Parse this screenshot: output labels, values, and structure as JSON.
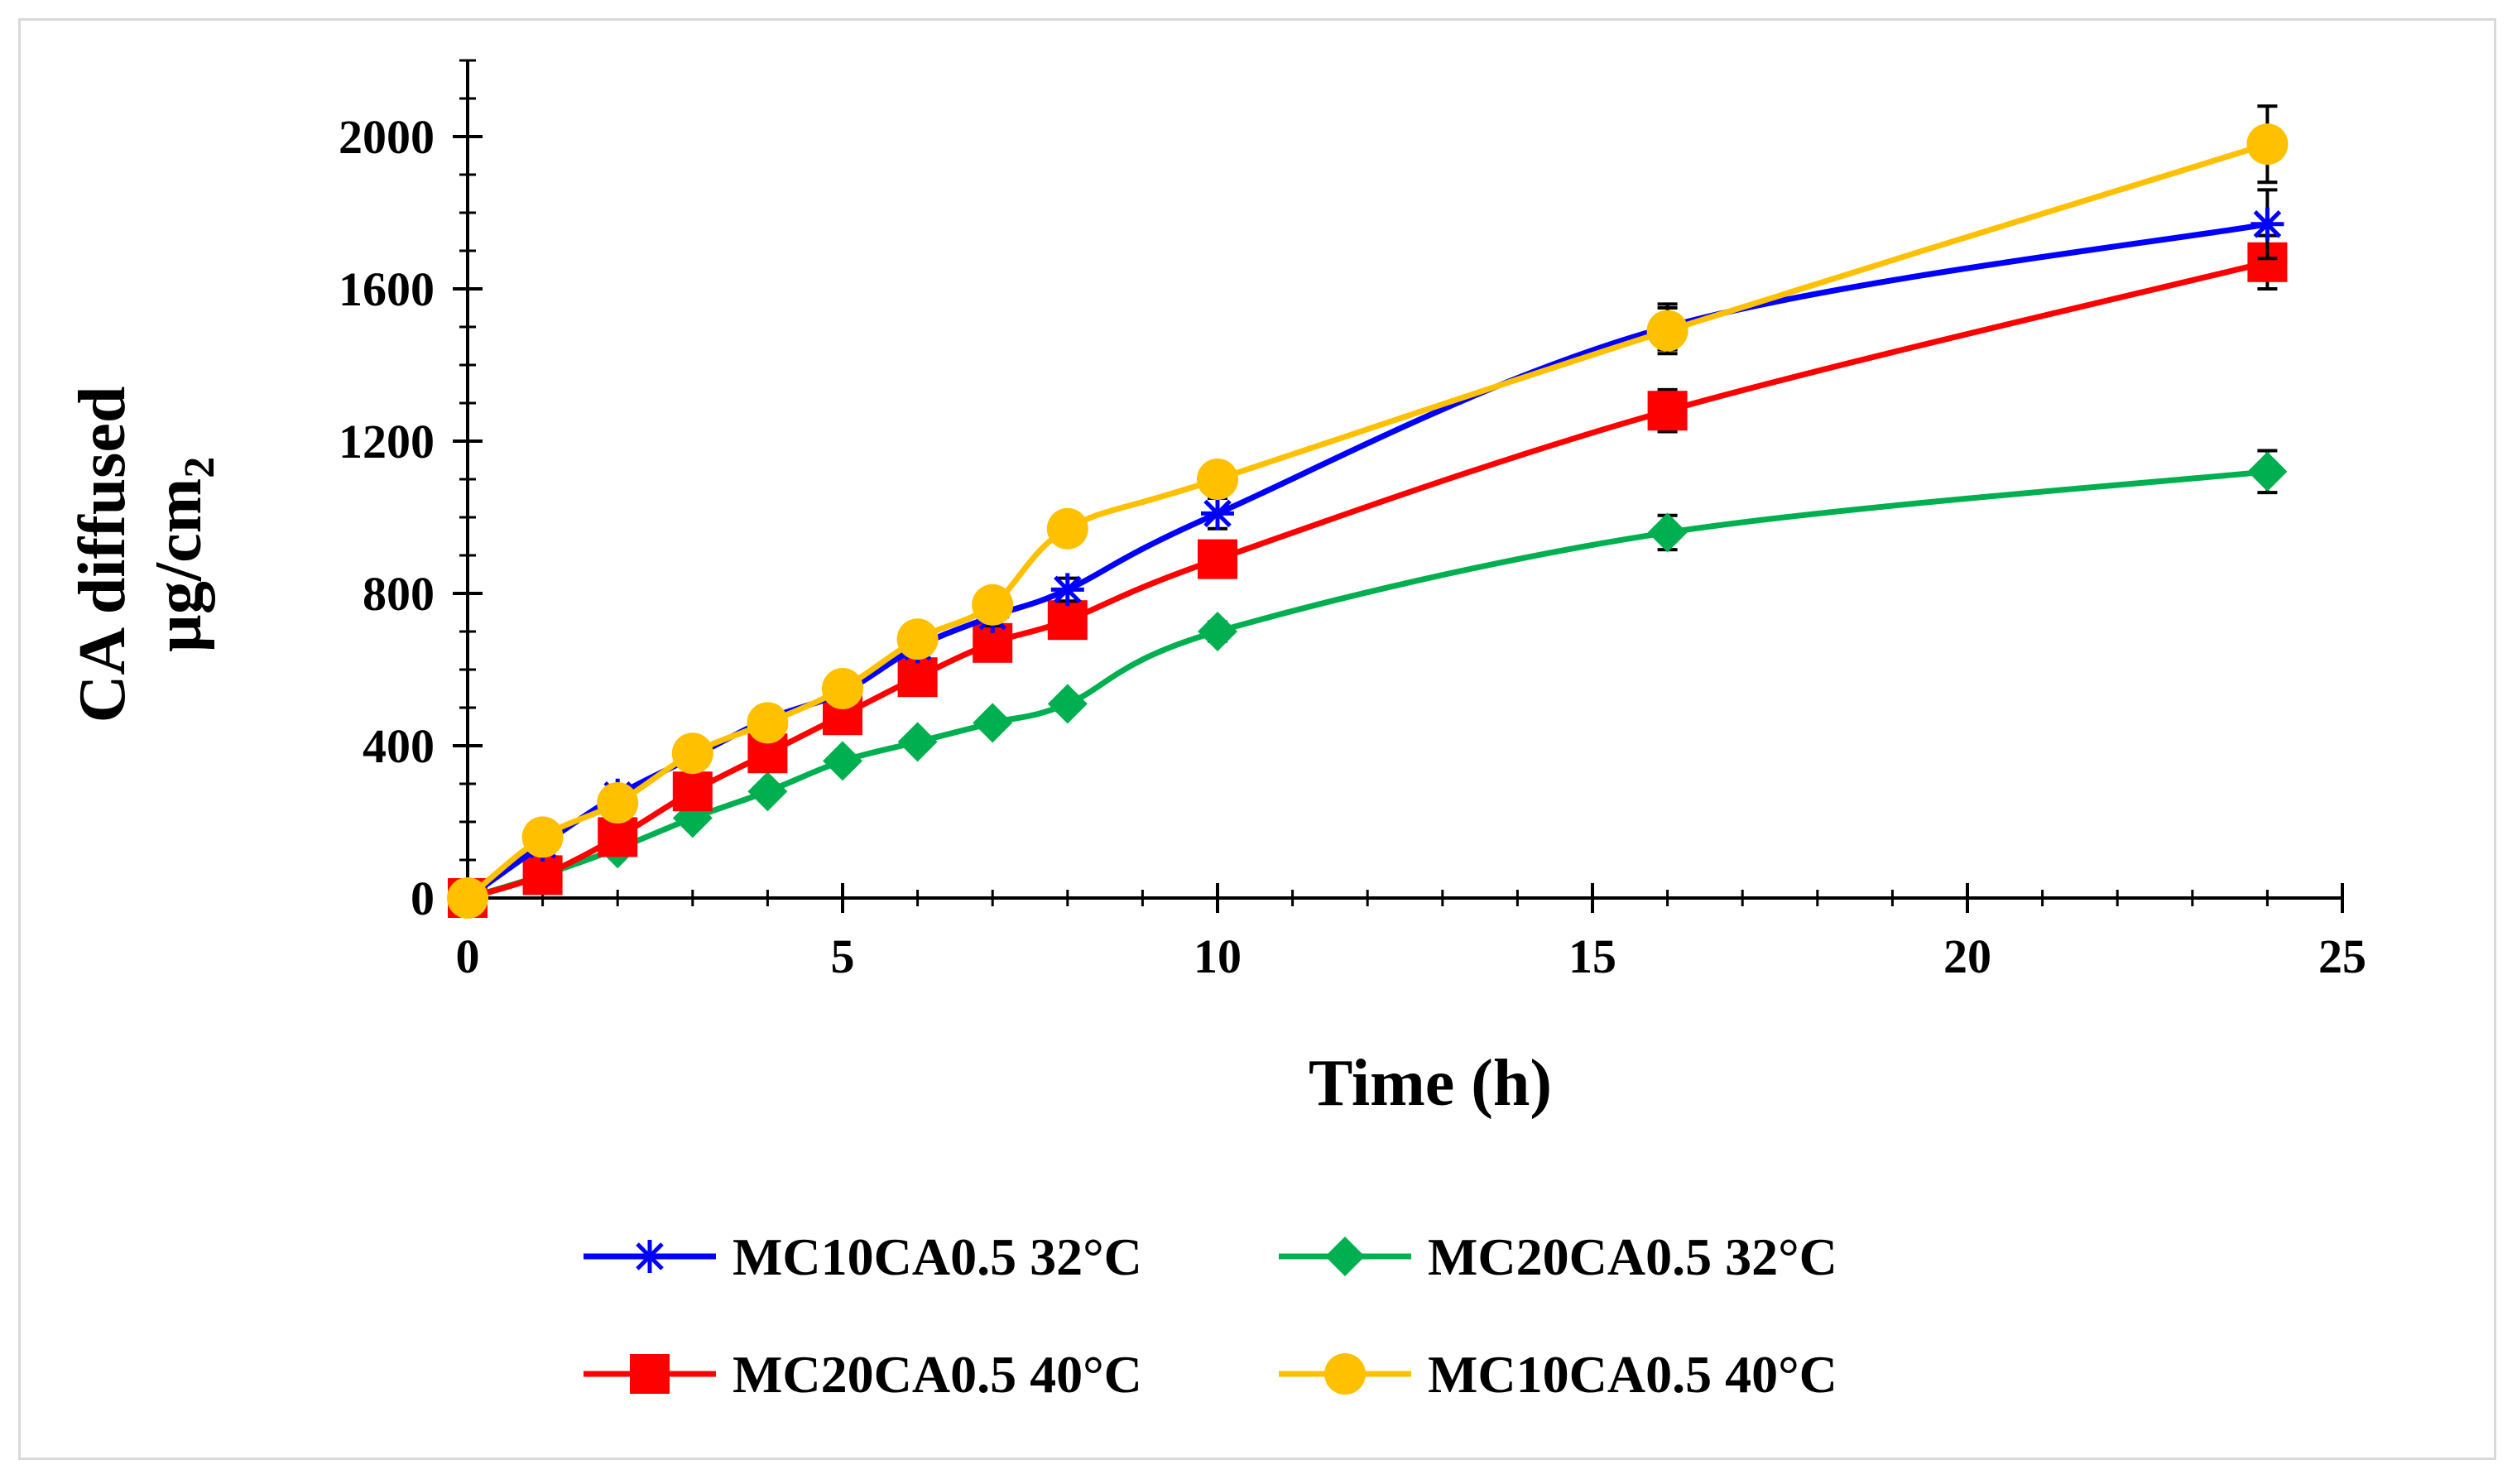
{
  "chart_data": {
    "type": "line",
    "title": "",
    "xlabel": "Time (h)",
    "ylabel_line1": "CA diffused",
    "ylabel_line2_main": "µg/cm",
    "ylabel_line2_sub": "2",
    "xlim": [
      0,
      25
    ],
    "ylim": [
      0,
      2200
    ],
    "xticks": [
      0,
      5,
      10,
      15,
      20,
      25
    ],
    "yticks": [
      0,
      400,
      800,
      1200,
      1600,
      2000
    ],
    "grid": false,
    "legend_position": "bottom",
    "x": [
      0,
      1,
      2,
      3,
      4,
      5,
      6,
      7,
      8,
      10,
      16,
      24
    ],
    "series": [
      {
        "name": "MC10CA0.5 32°C",
        "color": "#0000ff",
        "marker": "star",
        "values": [
          0,
          140,
          270,
          370,
          470,
          540,
          660,
          740,
          810,
          1010,
          1500,
          1770
        ],
        "errors": [
          0,
          10,
          15,
          15,
          20,
          20,
          25,
          25,
          30,
          40,
          60,
          90
        ]
      },
      {
        "name": "MC20CA0.5 32°C",
        "color": "#00b050",
        "marker": "diamond",
        "values": [
          0,
          60,
          130,
          210,
          280,
          360,
          410,
          460,
          510,
          700,
          960,
          1120
        ],
        "errors": [
          0,
          5,
          10,
          10,
          15,
          15,
          20,
          20,
          20,
          25,
          45,
          55
        ]
      },
      {
        "name": "MC20CA0.5 40°C",
        "color": "#ff0000",
        "marker": "square",
        "values": [
          0,
          60,
          160,
          280,
          380,
          480,
          580,
          670,
          730,
          890,
          1280,
          1670
        ],
        "errors": [
          0,
          10,
          10,
          15,
          15,
          20,
          20,
          25,
          25,
          35,
          55,
          70
        ]
      },
      {
        "name": "MC10CA0.5 40°C",
        "color": "#ffc000",
        "marker": "circle",
        "values": [
          0,
          160,
          250,
          380,
          460,
          550,
          680,
          770,
          970,
          1100,
          1490,
          1980
        ],
        "errors": [
          0,
          10,
          15,
          15,
          20,
          20,
          25,
          25,
          30,
          40,
          60,
          100
        ]
      }
    ]
  }
}
